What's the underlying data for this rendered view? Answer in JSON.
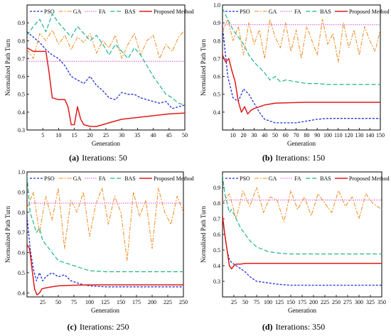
{
  "figure": {
    "common_ylabel": "Normalized Path Turn",
    "common_xlabel": "Generation",
    "legend": [
      "PSO",
      "GA",
      "FA",
      "BAS",
      "Proposed Method"
    ],
    "colors": {
      "PSO": "#1f2fd6",
      "GA": "#f08a1c",
      "FA": "#e04ce0",
      "BAS": "#22b38c",
      "Proposed Method": "#e01a1a"
    }
  },
  "chart_data": [
    {
      "type": "line",
      "panel_letter": "(a)",
      "caption": "Iterations: 50",
      "xlabel": "Generation",
      "ylabel": "Normalized Path Turn",
      "xlim": [
        0,
        50
      ],
      "ylim": [
        0.3,
        1.0
      ],
      "xticks": [
        5,
        10,
        15,
        20,
        25,
        30,
        35,
        40,
        45,
        50
      ],
      "yticks": [
        0.3,
        0.4,
        0.5,
        0.6,
        0.7,
        0.8,
        0.9
      ],
      "legend_position": "top",
      "series": [
        {
          "name": "PSO",
          "x": [
            0,
            2,
            4,
            6,
            8,
            10,
            12,
            14,
            16,
            18,
            20,
            22,
            24,
            26,
            28,
            30,
            32,
            34,
            36,
            38,
            40,
            42,
            44,
            46,
            48,
            50
          ],
          "y": [
            0.85,
            0.82,
            0.79,
            0.75,
            0.72,
            0.7,
            0.66,
            0.6,
            0.58,
            0.56,
            0.6,
            0.55,
            0.52,
            0.48,
            0.47,
            0.51,
            0.5,
            0.5,
            0.48,
            0.47,
            0.46,
            0.45,
            0.46,
            0.42,
            0.43,
            0.44
          ]
        },
        {
          "name": "GA",
          "x": [
            0,
            2,
            4,
            6,
            8,
            10,
            12,
            14,
            16,
            18,
            20,
            22,
            24,
            26,
            28,
            30,
            32,
            34,
            36,
            38,
            40,
            42,
            44,
            46,
            48,
            50
          ],
          "y": [
            0.75,
            0.7,
            0.84,
            0.8,
            0.86,
            0.78,
            0.83,
            0.75,
            0.82,
            0.79,
            0.84,
            0.73,
            0.8,
            0.76,
            0.83,
            0.7,
            0.78,
            0.84,
            0.72,
            0.8,
            0.83,
            0.7,
            0.78,
            0.74,
            0.82,
            0.86
          ]
        },
        {
          "name": "FA",
          "x": [
            0,
            50
          ],
          "y": [
            0.685,
            0.685
          ]
        },
        {
          "name": "BAS",
          "x": [
            0,
            2,
            4,
            6,
            8,
            10,
            12,
            14,
            16,
            18,
            20,
            22,
            24,
            26,
            28,
            30,
            32,
            34,
            36,
            38,
            40,
            42,
            44,
            46,
            48,
            50
          ],
          "y": [
            0.83,
            0.88,
            0.92,
            0.85,
            0.95,
            0.9,
            0.86,
            0.82,
            0.88,
            0.84,
            0.8,
            0.83,
            0.78,
            0.72,
            0.78,
            0.74,
            0.7,
            0.76,
            0.72,
            0.66,
            0.6,
            0.55,
            0.5,
            0.48,
            0.45,
            0.44
          ]
        },
        {
          "name": "Proposed Method",
          "x": [
            0,
            2,
            4,
            6,
            7,
            8,
            10,
            12,
            13,
            14,
            15,
            16,
            17,
            18,
            20,
            22,
            24,
            26,
            28,
            30,
            35,
            40,
            45,
            50
          ],
          "y": [
            0.76,
            0.74,
            0.74,
            0.74,
            0.62,
            0.48,
            0.47,
            0.47,
            0.43,
            0.33,
            0.33,
            0.43,
            0.36,
            0.33,
            0.32,
            0.32,
            0.33,
            0.34,
            0.35,
            0.36,
            0.37,
            0.38,
            0.39,
            0.395
          ]
        }
      ]
    },
    {
      "type": "line",
      "panel_letter": "(b)",
      "caption": "Iterations: 150",
      "xlabel": "Generation",
      "ylabel": "Normalized Path Turn",
      "xlim": [
        0,
        150
      ],
      "ylim": [
        0.3,
        1.0
      ],
      "xticks": [
        10,
        20,
        30,
        40,
        50,
        60,
        70,
        80,
        90,
        100,
        110,
        120,
        130,
        140,
        150
      ],
      "yticks": [
        0.4,
        0.5,
        0.6,
        0.7,
        0.8,
        0.9,
        1.0
      ],
      "legend_position": "top",
      "series": [
        {
          "name": "PSO",
          "x": [
            0,
            5,
            10,
            15,
            20,
            25,
            30,
            35,
            40,
            45,
            50,
            60,
            70,
            80,
            90,
            100,
            120,
            150
          ],
          "y": [
            0.88,
            0.6,
            0.48,
            0.46,
            0.53,
            0.5,
            0.45,
            0.4,
            0.36,
            0.35,
            0.34,
            0.34,
            0.34,
            0.35,
            0.36,
            0.365,
            0.365,
            0.365
          ]
        },
        {
          "name": "GA",
          "x": [
            0,
            5,
            10,
            15,
            20,
            25,
            30,
            35,
            40,
            45,
            50,
            55,
            60,
            65,
            70,
            75,
            80,
            85,
            90,
            95,
            100,
            105,
            110,
            115,
            120,
            125,
            130,
            135,
            140,
            145,
            150
          ],
          "y": [
            0.85,
            0.92,
            0.8,
            0.88,
            0.72,
            0.9,
            0.78,
            0.86,
            0.7,
            0.92,
            0.82,
            0.76,
            0.9,
            0.74,
            0.86,
            0.7,
            0.88,
            0.8,
            0.72,
            0.92,
            0.78,
            0.84,
            0.68,
            0.9,
            0.76,
            0.86,
            0.72,
            0.88,
            0.8,
            0.74,
            0.86
          ]
        },
        {
          "name": "FA",
          "x": [
            0,
            150
          ],
          "y": [
            0.89,
            0.89
          ]
        },
        {
          "name": "BAS",
          "x": [
            0,
            5,
            10,
            15,
            20,
            25,
            30,
            35,
            40,
            45,
            50,
            55,
            60,
            70,
            80,
            90,
            100,
            120,
            150
          ],
          "y": [
            0.98,
            0.92,
            0.86,
            0.82,
            0.78,
            0.72,
            0.68,
            0.65,
            0.62,
            0.58,
            0.6,
            0.57,
            0.58,
            0.57,
            0.56,
            0.56,
            0.555,
            0.555,
            0.555
          ]
        },
        {
          "name": "Proposed Method",
          "x": [
            0,
            3,
            6,
            9,
            12,
            15,
            18,
            21,
            24,
            27,
            30,
            35,
            40,
            50,
            60,
            80,
            100,
            120,
            150
          ],
          "y": [
            0.72,
            0.68,
            0.7,
            0.63,
            0.57,
            0.46,
            0.4,
            0.43,
            0.39,
            0.41,
            0.42,
            0.43,
            0.44,
            0.45,
            0.452,
            0.455,
            0.455,
            0.455,
            0.455
          ]
        }
      ]
    },
    {
      "type": "line",
      "panel_letter": "(c)",
      "caption": "Iterations: 250",
      "xlabel": "Generation",
      "ylabel": "Normalized Path Turn",
      "xlim": [
        0,
        250
      ],
      "ylim": [
        0.38,
        1.0
      ],
      "xticks": [
        25,
        50,
        75,
        100,
        125,
        150,
        175,
        200,
        225,
        250
      ],
      "yticks": [
        0.4,
        0.5,
        0.6,
        0.7,
        0.8,
        0.9,
        1.0
      ],
      "legend_position": "top",
      "series": [
        {
          "name": "PSO",
          "x": [
            0,
            5,
            10,
            15,
            20,
            25,
            30,
            40,
            50,
            60,
            70,
            80,
            90,
            100,
            125,
            150,
            200,
            250
          ],
          "y": [
            0.78,
            0.62,
            0.52,
            0.46,
            0.5,
            0.46,
            0.48,
            0.5,
            0.48,
            0.49,
            0.46,
            0.45,
            0.44,
            0.435,
            0.43,
            0.43,
            0.43,
            0.43
          ]
        },
        {
          "name": "GA",
          "x": [
            0,
            10,
            20,
            30,
            40,
            50,
            60,
            70,
            80,
            90,
            100,
            110,
            120,
            130,
            140,
            150,
            160,
            170,
            180,
            190,
            200,
            210,
            220,
            230,
            240,
            250
          ],
          "y": [
            0.82,
            0.9,
            0.7,
            0.88,
            0.76,
            0.92,
            0.62,
            0.86,
            0.8,
            0.9,
            0.68,
            0.84,
            0.92,
            0.74,
            0.88,
            0.8,
            0.56,
            0.9,
            0.78,
            0.86,
            0.62,
            0.92,
            0.8,
            0.74,
            0.88,
            0.8
          ]
        },
        {
          "name": "FA",
          "x": [
            0,
            250
          ],
          "y": [
            0.845,
            0.845
          ]
        },
        {
          "name": "BAS",
          "x": [
            0,
            5,
            10,
            15,
            20,
            25,
            30,
            40,
            50,
            60,
            70,
            80,
            90,
            100,
            125,
            150,
            200,
            250
          ],
          "y": [
            0.98,
            0.8,
            0.75,
            0.7,
            0.72,
            0.66,
            0.64,
            0.6,
            0.56,
            0.55,
            0.54,
            0.53,
            0.52,
            0.51,
            0.505,
            0.505,
            0.505,
            0.505
          ]
        },
        {
          "name": "Proposed Method",
          "x": [
            0,
            4,
            8,
            12,
            16,
            20,
            24,
            30,
            40,
            50,
            75,
            100,
            150,
            200,
            250
          ],
          "y": [
            0.64,
            0.62,
            0.52,
            0.42,
            0.39,
            0.4,
            0.42,
            0.425,
            0.43,
            0.435,
            0.438,
            0.44,
            0.44,
            0.44,
            0.44
          ]
        }
      ]
    },
    {
      "type": "line",
      "panel_letter": "(d)",
      "caption": "Iterations: 350",
      "xlabel": "Generation",
      "ylabel": "Normalized Path Turn",
      "xlim": [
        0,
        350
      ],
      "ylim": [
        0.2,
        1.0
      ],
      "xticks": [
        25,
        50,
        75,
        100,
        125,
        150,
        175,
        200,
        225,
        250,
        275,
        300,
        325,
        350
      ],
      "yticks": [
        0.3,
        0.4,
        0.5,
        0.6,
        0.7,
        0.8,
        0.9
      ],
      "legend_position": "top",
      "series": [
        {
          "name": "PSO",
          "x": [
            0,
            5,
            10,
            15,
            20,
            30,
            40,
            50,
            60,
            75,
            100,
            125,
            150,
            200,
            250,
            300,
            350
          ],
          "y": [
            0.72,
            0.6,
            0.5,
            0.44,
            0.42,
            0.4,
            0.38,
            0.36,
            0.33,
            0.3,
            0.29,
            0.28,
            0.275,
            0.275,
            0.275,
            0.275,
            0.275
          ]
        },
        {
          "name": "GA",
          "x": [
            0,
            15,
            30,
            45,
            60,
            75,
            90,
            105,
            120,
            135,
            150,
            165,
            180,
            195,
            210,
            225,
            240,
            255,
            270,
            285,
            300,
            315,
            330,
            350
          ],
          "y": [
            0.8,
            0.86,
            0.7,
            0.88,
            0.78,
            0.9,
            0.74,
            0.84,
            0.82,
            0.68,
            0.88,
            0.76,
            0.84,
            0.72,
            0.86,
            0.8,
            0.74,
            0.88,
            0.78,
            0.84,
            0.7,
            0.86,
            0.8,
            0.76
          ]
        },
        {
          "name": "FA",
          "x": [
            0,
            350
          ],
          "y": [
            0.82,
            0.82
          ]
        },
        {
          "name": "BAS",
          "x": [
            0,
            5,
            10,
            15,
            20,
            30,
            40,
            50,
            60,
            75,
            100,
            125,
            150,
            200,
            250,
            300,
            350
          ],
          "y": [
            0.98,
            0.86,
            0.8,
            0.74,
            0.76,
            0.7,
            0.64,
            0.6,
            0.56,
            0.52,
            0.49,
            0.48,
            0.475,
            0.475,
            0.475,
            0.475,
            0.475
          ]
        },
        {
          "name": "Proposed Method",
          "x": [
            0,
            5,
            10,
            15,
            20,
            25,
            30,
            40,
            50,
            75,
            100,
            150,
            200,
            250,
            300,
            350
          ],
          "y": [
            0.72,
            0.6,
            0.5,
            0.4,
            0.38,
            0.4,
            0.41,
            0.41,
            0.415,
            0.415,
            0.415,
            0.415,
            0.415,
            0.415,
            0.415,
            0.415
          ]
        }
      ]
    }
  ]
}
